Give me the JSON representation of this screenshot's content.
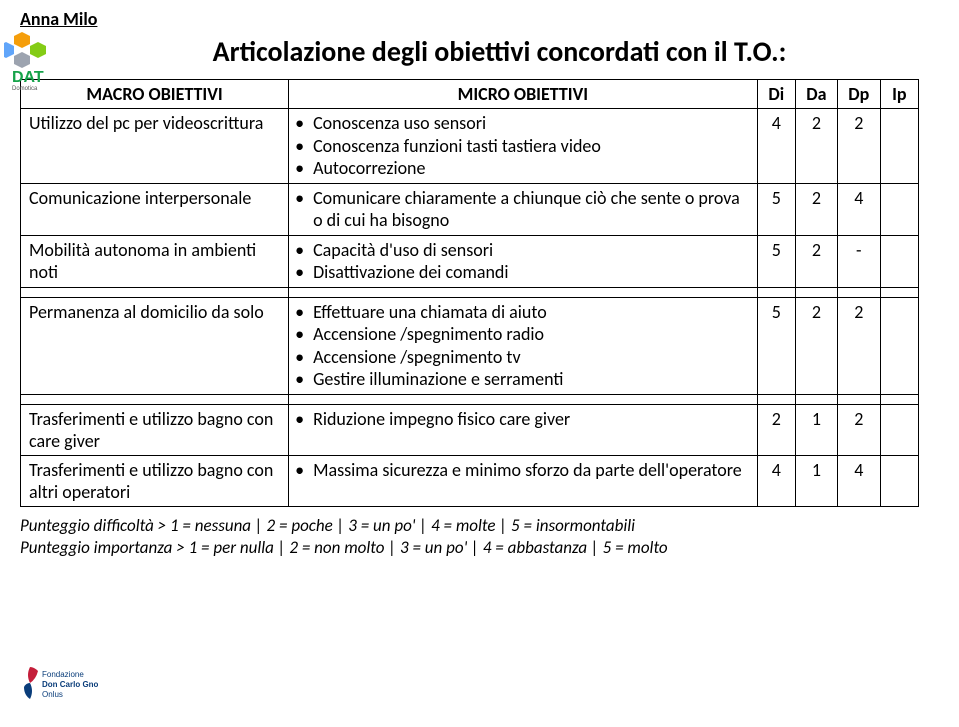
{
  "author": "Anna Milo",
  "title": "Articolazione degli obiettivi concordati con il T.O.:",
  "columns": {
    "macro": "MACRO OBIETTIVI",
    "micro": "MICRO OBIETTIVI",
    "di": "Di",
    "da": "Da",
    "dp": "Dp",
    "ip": "Ip"
  },
  "rows": [
    {
      "macro": "Utilizzo del pc per videoscrittura",
      "micro": [
        "Conoscenza uso sensori",
        "Conoscenza funzioni tasti tastiera video",
        "Autocorrezione"
      ],
      "di": "4",
      "da": "2",
      "dp": "2",
      "ip": ""
    },
    {
      "macro": "Comunicazione interpersonale",
      "micro": [
        "Comunicare chiaramente a chiunque ciò che sente o prova o di cui ha bisogno"
      ],
      "di": "5",
      "da": "2",
      "dp": "4",
      "ip": ""
    },
    {
      "macro": "Mobilità autonoma in ambienti noti",
      "micro": [
        "Capacità d'uso di sensori",
        "Disattivazione dei comandi"
      ],
      "di": "5",
      "da": "2",
      "dp": "-",
      "ip": ""
    },
    {
      "spacer": true
    },
    {
      "macro": "Permanenza al domicilio da solo",
      "micro": [
        "Effettuare una chiamata di aiuto",
        "Accensione /spegnimento radio",
        "Accensione /spegnimento tv",
        "Gestire illuminazione e serramenti"
      ],
      "di": "5",
      "da": "2",
      "dp": "2",
      "ip": ""
    },
    {
      "spacer": true
    },
    {
      "macro": "Trasferimenti e utilizzo bagno con care giver",
      "micro": [
        "Riduzione impegno fisico care giver"
      ],
      "di": "2",
      "da": "1",
      "dp": "2",
      "ip": ""
    },
    {
      "macro": "Trasferimenti e utilizzo bagno con altri operatori",
      "micro": [
        "Massima sicurezza e minimo sforzo da parte dell'operatore"
      ],
      "di": "4",
      "da": "1",
      "dp": "4",
      "ip": ""
    }
  ],
  "footer": {
    "line1": "Punteggio difficoltà > 1 = nessuna | 2 = poche | 3 = un po' | 4 = molte | 5 = insormontabili",
    "line2": "Punteggio importanza > 1 = per nulla | 2 = non molto | 3 = un po' | 4 = abbastanza | 5 = molto"
  },
  "colors": {
    "hex_orange": "#f59e0b",
    "hex_green": "#84cc16",
    "hex_gray": "#9ca3af",
    "hex_blue": "#60a5fa",
    "dat_text": "#16a34a",
    "fg_blue": "#0a3d7a",
    "text": "#000000",
    "border": "#000000",
    "bg": "#ffffff"
  },
  "brand": {
    "dat": "DAT",
    "dat_sub": "Domotica",
    "fg_line1": "Fondazione",
    "fg_line2": "Don Carlo Gnocchi",
    "fg_line3": "Onlus"
  }
}
